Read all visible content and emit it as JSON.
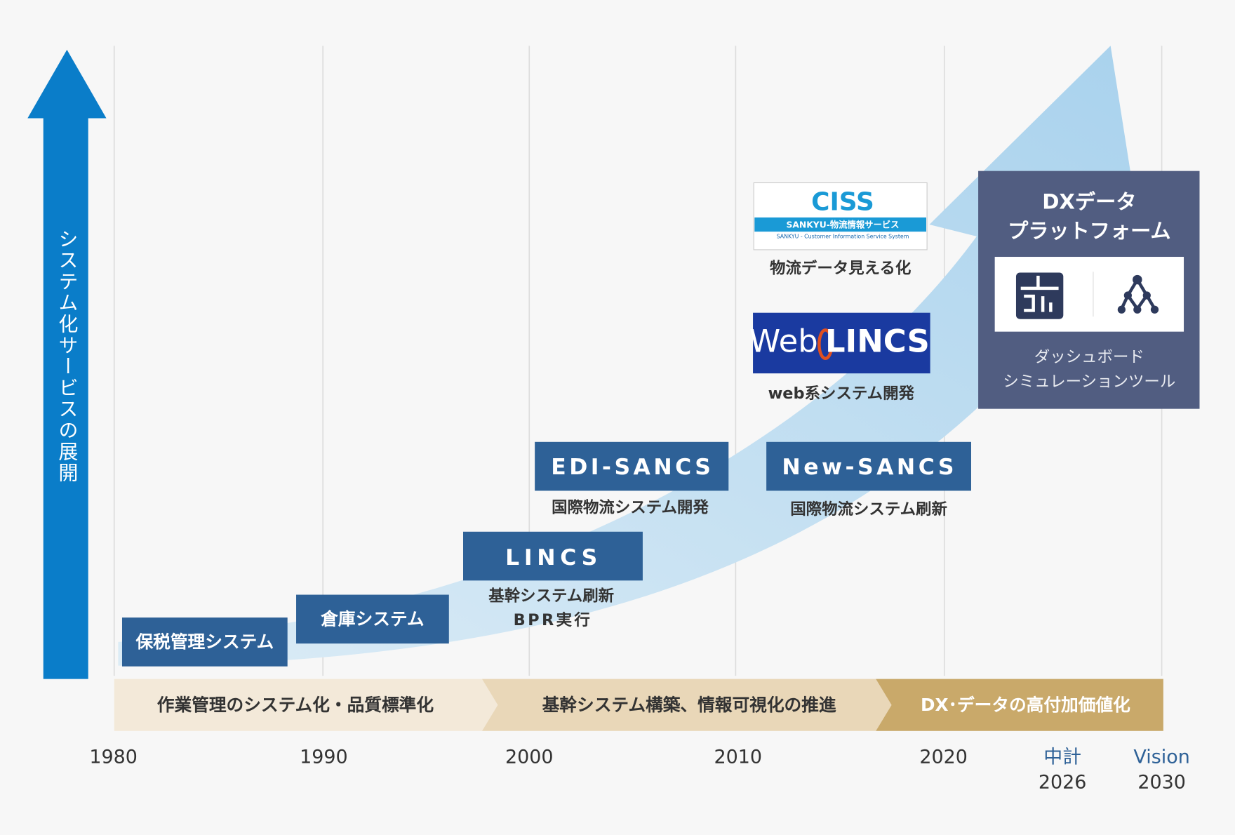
{
  "y_axis_label": "システム化サービスの展開",
  "timeline": {
    "years": [
      "1980",
      "1990",
      "2000",
      "2010",
      "2020"
    ],
    "plan": {
      "label": "中計",
      "year": "2026"
    },
    "vision": {
      "label": "Vision",
      "year": "2030"
    }
  },
  "systems": [
    {
      "name": "保税管理システム"
    },
    {
      "name": "倉庫システム"
    },
    {
      "name": "LINCS",
      "caption": [
        "基幹システム刷新",
        "BPR実行"
      ]
    },
    {
      "name": "EDI-SANCS",
      "caption": [
        "国際物流システム開発"
      ]
    },
    {
      "name": "New-SANCS",
      "caption": [
        "国際物流システム刷新"
      ]
    }
  ],
  "logos": {
    "ciss": {
      "title": "CISS",
      "subtitle": "SANKYU-物流情報サービス",
      "small": "SANKYU - Customer Information Service System",
      "caption": "物流データ見える化"
    },
    "weblincs": {
      "web": "Web",
      "lincs": "LINCS",
      "caption": "web系システム開発"
    }
  },
  "phases": [
    "作業管理のシステム化・品質標準化",
    "基幹システム構築、情報可視化の推進",
    "DX･データの高付加価値化"
  ],
  "dx_panel": {
    "title": [
      "DXデータ",
      "プラットフォーム"
    ],
    "tools": [
      "ダッシュボード",
      "シミュレーションツール"
    ]
  }
}
